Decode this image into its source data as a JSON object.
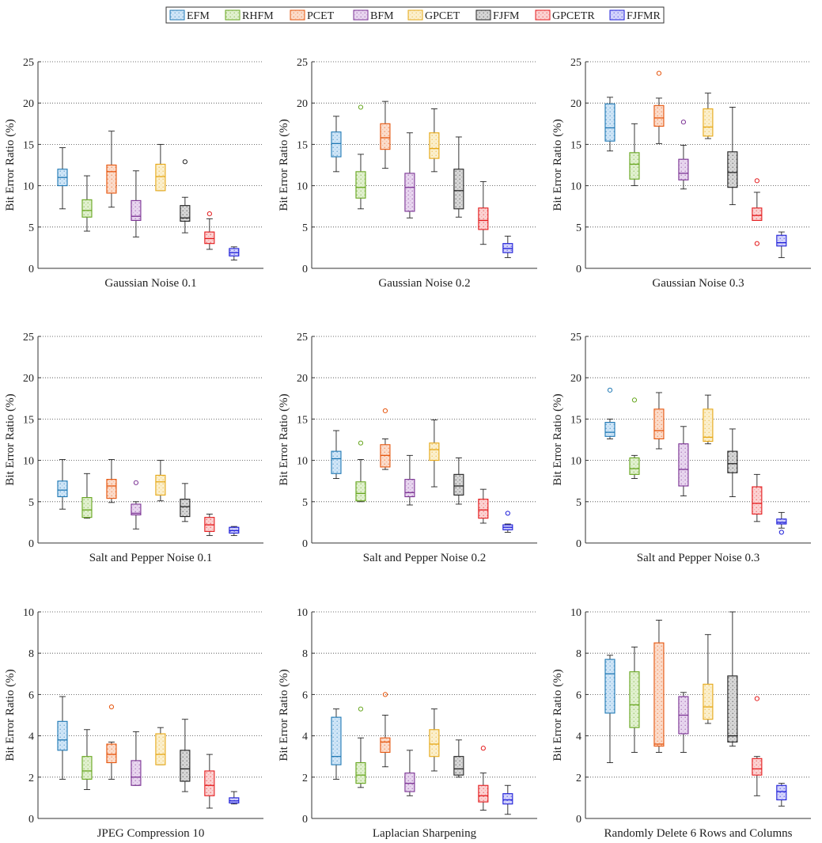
{
  "legend": [
    {
      "name": "EFM",
      "color": "#1f78b4",
      "fill": "#cfe5f7"
    },
    {
      "name": "RHFM",
      "color": "#66a61e",
      "fill": "#e1f0cf"
    },
    {
      "name": "PCET",
      "color": "#e6550d",
      "fill": "#fbdccb"
    },
    {
      "name": "BFM",
      "color": "#7b3294",
      "fill": "#e8d6ef"
    },
    {
      "name": "GPCET",
      "color": "#e6a817",
      "fill": "#fbefcc"
    },
    {
      "name": "FJFM",
      "color": "#222222",
      "fill": "#d6d6d6"
    },
    {
      "name": "GPCETR",
      "color": "#e41a1c",
      "fill": "#fbd2d2"
    },
    {
      "name": "FJFMR",
      "color": "#1c1cd8",
      "fill": "#d3d3fb"
    }
  ],
  "chart_data": [
    {
      "type": "box",
      "title": "Gaussian Noise 0.1",
      "ylabel": "Bit Error Ratio (%)",
      "ylim": [
        0,
        25
      ],
      "yticks": [
        0,
        5,
        10,
        15,
        20,
        25
      ],
      "grid": true,
      "boxes": [
        {
          "series": "EFM",
          "min": 7.2,
          "q1": 10.0,
          "median": 11.0,
          "q3": 12.0,
          "max": 14.6,
          "outliers": []
        },
        {
          "series": "RHFM",
          "min": 4.5,
          "q1": 6.2,
          "median": 7.0,
          "q3": 8.3,
          "max": 11.2,
          "outliers": []
        },
        {
          "series": "PCET",
          "min": 7.4,
          "q1": 9.1,
          "median": 11.7,
          "q3": 12.5,
          "max": 16.6,
          "outliers": []
        },
        {
          "series": "BFM",
          "min": 3.8,
          "q1": 5.8,
          "median": 6.3,
          "q3": 8.2,
          "max": 11.8,
          "outliers": []
        },
        {
          "series": "GPCET",
          "min": 9.4,
          "q1": 9.4,
          "median": 11.1,
          "q3": 12.6,
          "max": 15.0,
          "outliers": []
        },
        {
          "series": "FJFM",
          "min": 4.3,
          "q1": 5.7,
          "median": 6.1,
          "q3": 7.6,
          "max": 8.6,
          "outliers": [
            12.9
          ]
        },
        {
          "series": "GPCETR",
          "min": 2.3,
          "q1": 3.0,
          "median": 3.6,
          "q3": 4.4,
          "max": 6.0,
          "outliers": [
            6.6
          ]
        },
        {
          "series": "FJFMR",
          "min": 1.0,
          "q1": 1.5,
          "median": 1.9,
          "q3": 2.4,
          "max": 2.6,
          "outliers": []
        }
      ]
    },
    {
      "type": "box",
      "title": "Gaussian Noise 0.2",
      "ylabel": "Bit Error Ratio (%)",
      "ylim": [
        0,
        25
      ],
      "yticks": [
        0,
        5,
        10,
        15,
        20,
        25
      ],
      "grid": true,
      "boxes": [
        {
          "series": "EFM",
          "min": 11.7,
          "q1": 13.5,
          "median": 15.1,
          "q3": 16.5,
          "max": 18.4,
          "outliers": []
        },
        {
          "series": "RHFM",
          "min": 7.2,
          "q1": 8.5,
          "median": 9.8,
          "q3": 11.7,
          "max": 13.8,
          "outliers": [
            19.5
          ]
        },
        {
          "series": "PCET",
          "min": 12.1,
          "q1": 14.4,
          "median": 15.8,
          "q3": 17.5,
          "max": 20.2,
          "outliers": []
        },
        {
          "series": "BFM",
          "min": 6.1,
          "q1": 6.9,
          "median": 9.8,
          "q3": 11.5,
          "max": 16.4,
          "outliers": []
        },
        {
          "series": "GPCET",
          "min": 11.7,
          "q1": 13.3,
          "median": 14.5,
          "q3": 16.4,
          "max": 19.3,
          "outliers": []
        },
        {
          "series": "FJFM",
          "min": 6.2,
          "q1": 7.2,
          "median": 9.4,
          "q3": 12.0,
          "max": 15.9,
          "outliers": []
        },
        {
          "series": "GPCETR",
          "min": 2.9,
          "q1": 4.7,
          "median": 5.8,
          "q3": 7.3,
          "max": 10.5,
          "outliers": []
        },
        {
          "series": "FJFMR",
          "min": 1.3,
          "q1": 1.9,
          "median": 2.4,
          "q3": 3.0,
          "max": 3.9,
          "outliers": []
        }
      ]
    },
    {
      "type": "box",
      "title": "Gaussian Noise 0.3",
      "ylabel": "Bit Error Ratio (%)",
      "ylim": [
        0,
        25
      ],
      "yticks": [
        0,
        5,
        10,
        15,
        20,
        25
      ],
      "grid": true,
      "boxes": [
        {
          "series": "EFM",
          "min": 14.2,
          "q1": 15.4,
          "median": 17.0,
          "q3": 19.9,
          "max": 20.7,
          "outliers": []
        },
        {
          "series": "RHFM",
          "min": 10.0,
          "q1": 10.8,
          "median": 12.6,
          "q3": 14.0,
          "max": 17.5,
          "outliers": []
        },
        {
          "series": "PCET",
          "min": 15.1,
          "q1": 17.2,
          "median": 18.2,
          "q3": 19.7,
          "max": 20.6,
          "outliers": [
            23.6
          ]
        },
        {
          "series": "BFM",
          "min": 9.6,
          "q1": 10.7,
          "median": 11.5,
          "q3": 13.2,
          "max": 14.9,
          "outliers": [
            17.7
          ]
        },
        {
          "series": "GPCET",
          "min": 15.7,
          "q1": 16.0,
          "median": 17.1,
          "q3": 19.3,
          "max": 21.2,
          "outliers": []
        },
        {
          "series": "FJFM",
          "min": 7.7,
          "q1": 9.8,
          "median": 11.6,
          "q3": 14.1,
          "max": 19.5,
          "outliers": []
        },
        {
          "series": "GPCETR",
          "min": 5.8,
          "q1": 5.8,
          "median": 6.4,
          "q3": 7.3,
          "max": 9.2,
          "outliers": [
            10.6,
            3.0
          ]
        },
        {
          "series": "FJFMR",
          "min": 1.3,
          "q1": 2.7,
          "median": 3.1,
          "q3": 4.0,
          "max": 4.4,
          "outliers": []
        }
      ]
    },
    {
      "type": "box",
      "title": "Salt and Pepper Noise 0.1",
      "ylabel": "Bit Error Ratio (%)",
      "ylim": [
        0,
        25
      ],
      "yticks": [
        0,
        5,
        10,
        15,
        20,
        25
      ],
      "grid": true,
      "boxes": [
        {
          "series": "EFM",
          "min": 4.1,
          "q1": 5.6,
          "median": 6.4,
          "q3": 7.5,
          "max": 10.1,
          "outliers": []
        },
        {
          "series": "RHFM",
          "min": 3.0,
          "q1": 3.1,
          "median": 4.0,
          "q3": 5.5,
          "max": 8.4,
          "outliers": []
        },
        {
          "series": "PCET",
          "min": 4.9,
          "q1": 5.4,
          "median": 6.9,
          "q3": 7.7,
          "max": 10.1,
          "outliers": []
        },
        {
          "series": "BFM",
          "min": 1.7,
          "q1": 3.4,
          "median": 3.6,
          "q3": 4.7,
          "max": 5.0,
          "outliers": [
            7.3
          ]
        },
        {
          "series": "GPCET",
          "min": 5.1,
          "q1": 5.8,
          "median": 7.4,
          "q3": 8.2,
          "max": 10.0,
          "outliers": []
        },
        {
          "series": "FJFM",
          "min": 2.6,
          "q1": 3.2,
          "median": 4.4,
          "q3": 5.3,
          "max": 7.2,
          "outliers": []
        },
        {
          "series": "GPCETR",
          "min": 0.9,
          "q1": 1.4,
          "median": 2.2,
          "q3": 3.1,
          "max": 3.5,
          "outliers": []
        },
        {
          "series": "FJFMR",
          "min": 0.9,
          "q1": 1.2,
          "median": 1.5,
          "q3": 1.9,
          "max": 2.0,
          "outliers": []
        }
      ]
    },
    {
      "type": "box",
      "title": "Salt and Pepper Noise 0.2",
      "ylabel": "Bit Error Ratio (%)",
      "ylim": [
        0,
        25
      ],
      "yticks": [
        0,
        5,
        10,
        15,
        20,
        25
      ],
      "grid": true,
      "boxes": [
        {
          "series": "EFM",
          "min": 7.8,
          "q1": 8.4,
          "median": 10.2,
          "q3": 11.1,
          "max": 13.6,
          "outliers": []
        },
        {
          "series": "RHFM",
          "min": 5.0,
          "q1": 5.1,
          "median": 6.0,
          "q3": 7.4,
          "max": 10.1,
          "outliers": [
            12.1
          ]
        },
        {
          "series": "PCET",
          "min": 8.9,
          "q1": 9.2,
          "median": 10.6,
          "q3": 11.9,
          "max": 12.6,
          "outliers": [
            16.0
          ]
        },
        {
          "series": "BFM",
          "min": 4.6,
          "q1": 5.6,
          "median": 6.1,
          "q3": 7.7,
          "max": 10.6,
          "outliers": []
        },
        {
          "series": "GPCET",
          "min": 6.8,
          "q1": 10.0,
          "median": 11.3,
          "q3": 12.1,
          "max": 14.9,
          "outliers": []
        },
        {
          "series": "FJFM",
          "min": 4.7,
          "q1": 5.8,
          "median": 6.9,
          "q3": 8.3,
          "max": 10.3,
          "outliers": []
        },
        {
          "series": "GPCETR",
          "min": 2.4,
          "q1": 3.0,
          "median": 4.0,
          "q3": 5.3,
          "max": 6.5,
          "outliers": []
        },
        {
          "series": "FJFMR",
          "min": 1.3,
          "q1": 1.6,
          "median": 1.9,
          "q3": 2.2,
          "max": 2.3,
          "outliers": [
            3.6
          ]
        }
      ]
    },
    {
      "type": "box",
      "title": "Salt and Pepper Noise 0.3",
      "ylabel": "Bit Error Ratio (%)",
      "ylim": [
        0,
        25
      ],
      "yticks": [
        0,
        5,
        10,
        15,
        20,
        25
      ],
      "grid": true,
      "boxes": [
        {
          "series": "EFM",
          "min": 12.6,
          "q1": 12.9,
          "median": 13.4,
          "q3": 14.6,
          "max": 15.0,
          "outliers": [
            18.5
          ]
        },
        {
          "series": "RHFM",
          "min": 7.8,
          "q1": 8.3,
          "median": 9.0,
          "q3": 10.3,
          "max": 10.6,
          "outliers": [
            17.3
          ]
        },
        {
          "series": "PCET",
          "min": 11.4,
          "q1": 12.6,
          "median": 13.6,
          "q3": 16.2,
          "max": 18.2,
          "outliers": []
        },
        {
          "series": "BFM",
          "min": 5.7,
          "q1": 6.9,
          "median": 8.9,
          "q3": 12.0,
          "max": 14.1,
          "outliers": []
        },
        {
          "series": "GPCET",
          "min": 12.0,
          "q1": 12.3,
          "median": 12.8,
          "q3": 16.2,
          "max": 17.9,
          "outliers": []
        },
        {
          "series": "FJFM",
          "min": 5.6,
          "q1": 8.5,
          "median": 9.6,
          "q3": 11.1,
          "max": 13.8,
          "outliers": []
        },
        {
          "series": "GPCETR",
          "min": 2.6,
          "q1": 3.5,
          "median": 4.8,
          "q3": 6.8,
          "max": 8.3,
          "outliers": []
        },
        {
          "series": "FJFMR",
          "min": 1.8,
          "q1": 2.3,
          "median": 2.5,
          "q3": 2.9,
          "max": 3.7,
          "outliers": [
            1.3
          ]
        }
      ]
    },
    {
      "type": "box",
      "title": "JPEG Compression 10",
      "ylabel": "Bit Error Ratio (%)",
      "ylim": [
        0,
        10
      ],
      "yticks": [
        0,
        2,
        4,
        6,
        8,
        10
      ],
      "grid": true,
      "boxes": [
        {
          "series": "EFM",
          "min": 1.9,
          "q1": 3.3,
          "median": 3.8,
          "q3": 4.7,
          "max": 5.9,
          "outliers": []
        },
        {
          "series": "RHFM",
          "min": 1.4,
          "q1": 1.9,
          "median": 2.3,
          "q3": 3.0,
          "max": 4.3,
          "outliers": []
        },
        {
          "series": "PCET",
          "min": 1.9,
          "q1": 2.7,
          "median": 3.1,
          "q3": 3.6,
          "max": 3.7,
          "outliers": [
            5.4
          ]
        },
        {
          "series": "BFM",
          "min": 1.6,
          "q1": 1.6,
          "median": 2.0,
          "q3": 2.8,
          "max": 4.2,
          "outliers": []
        },
        {
          "series": "GPCET",
          "min": 2.6,
          "q1": 2.6,
          "median": 3.1,
          "q3": 4.1,
          "max": 4.4,
          "outliers": []
        },
        {
          "series": "FJFM",
          "min": 1.3,
          "q1": 1.8,
          "median": 2.4,
          "q3": 3.3,
          "max": 4.8,
          "outliers": []
        },
        {
          "series": "GPCETR",
          "min": 0.5,
          "q1": 1.1,
          "median": 1.6,
          "q3": 2.3,
          "max": 3.1,
          "outliers": []
        },
        {
          "series": "FJFMR",
          "min": 0.7,
          "q1": 0.75,
          "median": 0.85,
          "q3": 1.0,
          "max": 1.3,
          "outliers": []
        }
      ]
    },
    {
      "type": "box",
      "title": "Laplacian Sharpening",
      "ylabel": "Bit Error Ratio (%)",
      "ylim": [
        0,
        10
      ],
      "yticks": [
        0,
        2,
        4,
        6,
        8,
        10
      ],
      "grid": true,
      "boxes": [
        {
          "series": "EFM",
          "min": 1.9,
          "q1": 2.6,
          "median": 3.0,
          "q3": 4.9,
          "max": 5.3,
          "outliers": []
        },
        {
          "series": "RHFM",
          "min": 1.5,
          "q1": 1.7,
          "median": 2.1,
          "q3": 2.7,
          "max": 3.9,
          "outliers": [
            5.3
          ]
        },
        {
          "series": "PCET",
          "min": 2.5,
          "q1": 3.2,
          "median": 3.7,
          "q3": 3.9,
          "max": 5.0,
          "outliers": [
            6.0
          ]
        },
        {
          "series": "BFM",
          "min": 1.1,
          "q1": 1.3,
          "median": 1.7,
          "q3": 2.2,
          "max": 3.3,
          "outliers": []
        },
        {
          "series": "GPCET",
          "min": 2.3,
          "q1": 3.0,
          "median": 3.6,
          "q3": 4.3,
          "max": 5.3,
          "outliers": []
        },
        {
          "series": "FJFM",
          "min": 2.0,
          "q1": 2.1,
          "median": 2.4,
          "q3": 3.0,
          "max": 3.8,
          "outliers": []
        },
        {
          "series": "GPCETR",
          "min": 0.4,
          "q1": 0.8,
          "median": 1.1,
          "q3": 1.6,
          "max": 2.2,
          "outliers": [
            3.4
          ]
        },
        {
          "series": "FJFMR",
          "min": 0.2,
          "q1": 0.7,
          "median": 0.9,
          "q3": 1.2,
          "max": 1.6,
          "outliers": []
        }
      ]
    },
    {
      "type": "box",
      "title": "Randomly Delete 6 Rows and Columns",
      "ylabel": "Bit Error Ratio (%)",
      "ylim": [
        0,
        10
      ],
      "yticks": [
        0,
        2,
        4,
        6,
        8,
        10
      ],
      "grid": true,
      "boxes": [
        {
          "series": "EFM",
          "min": 2.7,
          "q1": 5.1,
          "median": 7.0,
          "q3": 7.7,
          "max": 7.9,
          "outliers": []
        },
        {
          "series": "RHFM",
          "min": 3.2,
          "q1": 4.4,
          "median": 5.5,
          "q3": 7.1,
          "max": 8.3,
          "outliers": []
        },
        {
          "series": "PCET",
          "min": 3.2,
          "q1": 3.5,
          "median": 3.6,
          "q3": 8.5,
          "max": 9.6,
          "outliers": []
        },
        {
          "series": "BFM",
          "min": 3.2,
          "q1": 4.1,
          "median": 5.0,
          "q3": 5.9,
          "max": 6.1,
          "outliers": []
        },
        {
          "series": "GPCET",
          "min": 4.6,
          "q1": 4.8,
          "median": 5.4,
          "q3": 6.5,
          "max": 8.9,
          "outliers": []
        },
        {
          "series": "FJFM",
          "min": 3.5,
          "q1": 3.7,
          "median": 4.0,
          "q3": 6.9,
          "max": 10.0,
          "outliers": []
        },
        {
          "series": "GPCETR",
          "min": 1.1,
          "q1": 2.1,
          "median": 2.4,
          "q3": 2.9,
          "max": 3.0,
          "outliers": [
            5.8
          ]
        },
        {
          "series": "FJFMR",
          "min": 0.6,
          "q1": 0.9,
          "median": 1.3,
          "q3": 1.6,
          "max": 1.7,
          "outliers": []
        }
      ]
    }
  ]
}
